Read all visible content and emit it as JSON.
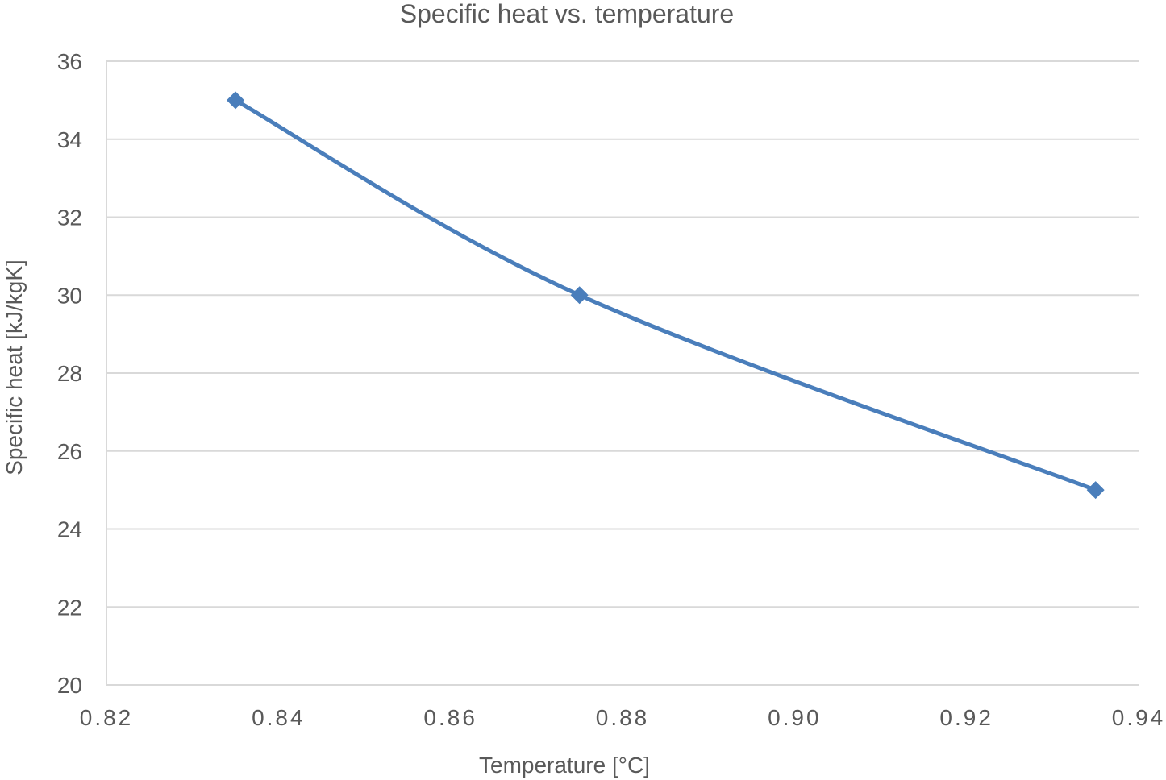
{
  "chart_data": {
    "type": "line",
    "title": "Specific heat vs. temperature",
    "xlabel": "Temperature [°C]",
    "ylabel": "Specific heat [kJ/kgK]",
    "xlim": [
      0.82,
      0.94
    ],
    "ylim": [
      20,
      36
    ],
    "x_ticks": [
      "0.82",
      "0.84",
      "0.86",
      "0.88",
      "0.90",
      "0.92",
      "0.94"
    ],
    "y_ticks": [
      "20",
      "22",
      "24",
      "26",
      "28",
      "30",
      "32",
      "34",
      "36"
    ],
    "grid": true,
    "smooth": true,
    "marker": "diamond",
    "series": [
      {
        "color": "#4a7ebb",
        "points": [
          {
            "x": 0.835,
            "y": 35
          },
          {
            "x": 0.875,
            "y": 30
          },
          {
            "x": 0.935,
            "y": 25
          }
        ]
      }
    ]
  }
}
